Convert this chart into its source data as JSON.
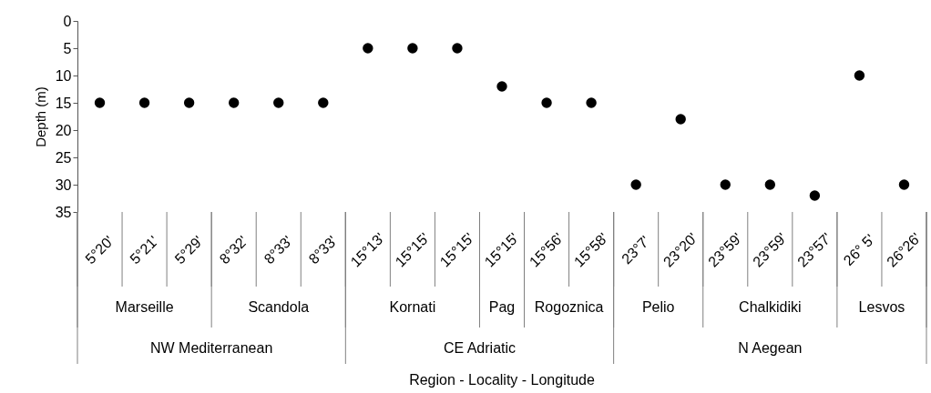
{
  "chart_data": {
    "type": "scatter",
    "ylabel": "Depth (m)",
    "categories": [
      "5°20'",
      "5°21'",
      "5°29'",
      "8°32'",
      "8°33'",
      "8°33'",
      "15°13'",
      "15°15'",
      "15°15'",
      "15°15'",
      "15°56'",
      "15°58'",
      "23°7'",
      "23°20'",
      "23°59'",
      "23°59'",
      "23°57'",
      "26° 5'",
      "26°26'"
    ],
    "values": [
      15,
      15,
      15,
      15,
      15,
      15,
      5,
      5,
      5,
      12,
      15,
      15,
      30,
      18,
      30,
      30,
      32,
      10,
      30
    ],
    "color": "#000000",
    "marker": "circle",
    "ylim": [
      35,
      0
    ],
    "yticks": [
      0,
      5,
      10,
      15,
      20,
      25,
      30,
      35
    ],
    "grid": false,
    "legend": false,
    "annotations": [
      "Marseille",
      "Scandola",
      "Kornati",
      "Pag",
      "Rogoznica",
      "Pelio",
      "Chalkidiki",
      "Lesvos",
      "NW Mediterranean",
      "CE Adriatic",
      "N Aegean",
      "Region - Locality - Longitude"
    ]
  }
}
